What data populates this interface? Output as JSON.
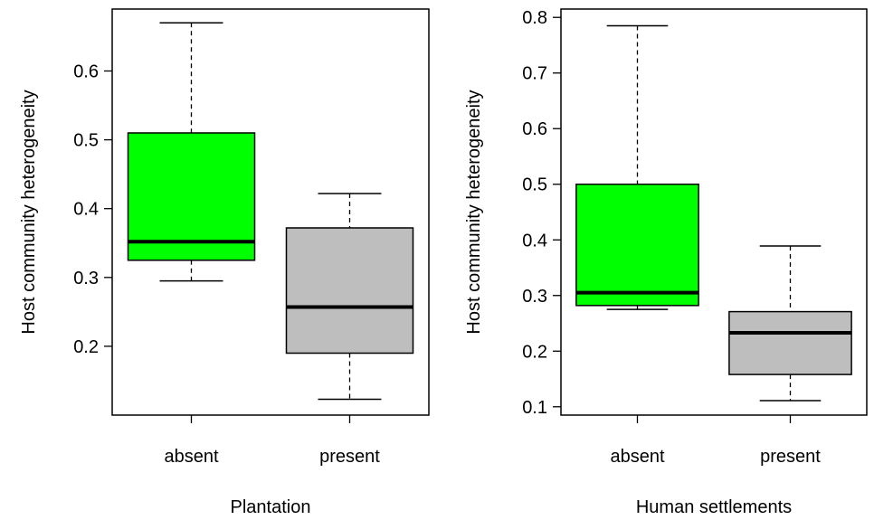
{
  "chart_data": [
    {
      "type": "box",
      "xlabel": "Plantation",
      "ylabel": "Host community heterogeneity",
      "categories": [
        "absent",
        "present"
      ],
      "ylim": [
        0.1,
        0.69
      ],
      "yticks": [
        0.2,
        0.3,
        0.4,
        0.5,
        0.6
      ],
      "ytick_labels": [
        "0.2",
        "0.3",
        "0.4",
        "0.5",
        "0.6"
      ],
      "boxes": [
        {
          "category": "absent",
          "min": 0.295,
          "q1": 0.325,
          "median": 0.352,
          "q3": 0.51,
          "max": 0.67,
          "color": "#00ff00"
        },
        {
          "category": "present",
          "min": 0.123,
          "q1": 0.19,
          "median": 0.257,
          "q3": 0.372,
          "max": 0.422,
          "color": "#bebebe"
        }
      ]
    },
    {
      "type": "box",
      "xlabel": "Human settlements",
      "ylabel": "Host community heterogeneity",
      "categories": [
        "absent",
        "present"
      ],
      "ylim": [
        0.085,
        0.815
      ],
      "yticks": [
        0.1,
        0.2,
        0.3,
        0.4,
        0.5,
        0.6,
        0.7,
        0.8
      ],
      "ytick_labels": [
        "0.1",
        "0.2",
        "0.3",
        "0.4",
        "0.5",
        "0.6",
        "0.7",
        "0.8"
      ],
      "boxes": [
        {
          "category": "absent",
          "min": 0.275,
          "q1": 0.282,
          "median": 0.305,
          "q3": 0.5,
          "max": 0.785,
          "color": "#00ff00"
        },
        {
          "category": "present",
          "min": 0.111,
          "q1": 0.158,
          "median": 0.233,
          "q3": 0.271,
          "max": 0.389,
          "color": "#bebebe"
        }
      ]
    }
  ]
}
